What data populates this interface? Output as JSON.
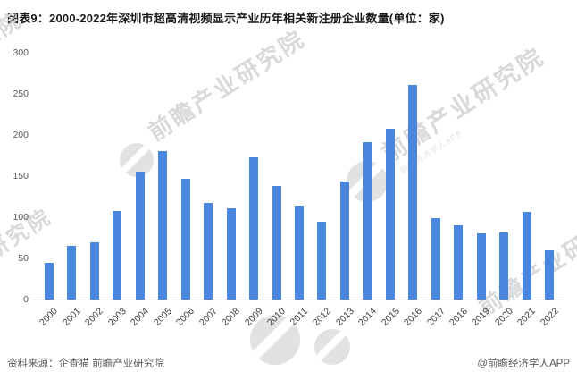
{
  "title": "图表9：2000-2022年深圳市超高清视频显示产业历年相关新注册企业数量(单位：家)",
  "footer": {
    "source": "资料来源：企查猫 前瞻产业研究院",
    "credit": "@前瞻经济学人APP"
  },
  "watermark": {
    "text": "前瞻产业研究院",
    "subtext": "前瞻经济学人APP"
  },
  "colors": {
    "bar": "#4a86e0",
    "axis_line": "#d6d6d6",
    "y_tick_label": "#595959",
    "x_tick_label": "#404040",
    "title": "#1a1a1a",
    "footer": "#595959",
    "watermark": "#d9d9d9",
    "background": "#ffffff"
  },
  "chart_data": {
    "type": "bar",
    "title": "2000-2022年深圳市超高清视频显示产业历年相关新注册企业数量",
    "unit": "家",
    "categories": [
      "2000",
      "2001",
      "2002",
      "2003",
      "2004",
      "2005",
      "2006",
      "2007",
      "2008",
      "2009",
      "2010",
      "2011",
      "2012",
      "2013",
      "2014",
      "2015",
      "2016",
      "2017",
      "2018",
      "2019",
      "2020",
      "2021",
      "2022"
    ],
    "values": [
      45,
      65,
      70,
      108,
      155,
      180,
      147,
      117,
      111,
      173,
      138,
      114,
      95,
      144,
      191,
      208,
      261,
      99,
      90,
      80,
      82,
      106,
      60
    ],
    "xlabel": "",
    "ylabel": "",
    "ylim": [
      0,
      300
    ],
    "yticks": [
      0,
      50,
      100,
      150,
      200,
      250,
      300
    ],
    "grid": false,
    "legend": null
  }
}
